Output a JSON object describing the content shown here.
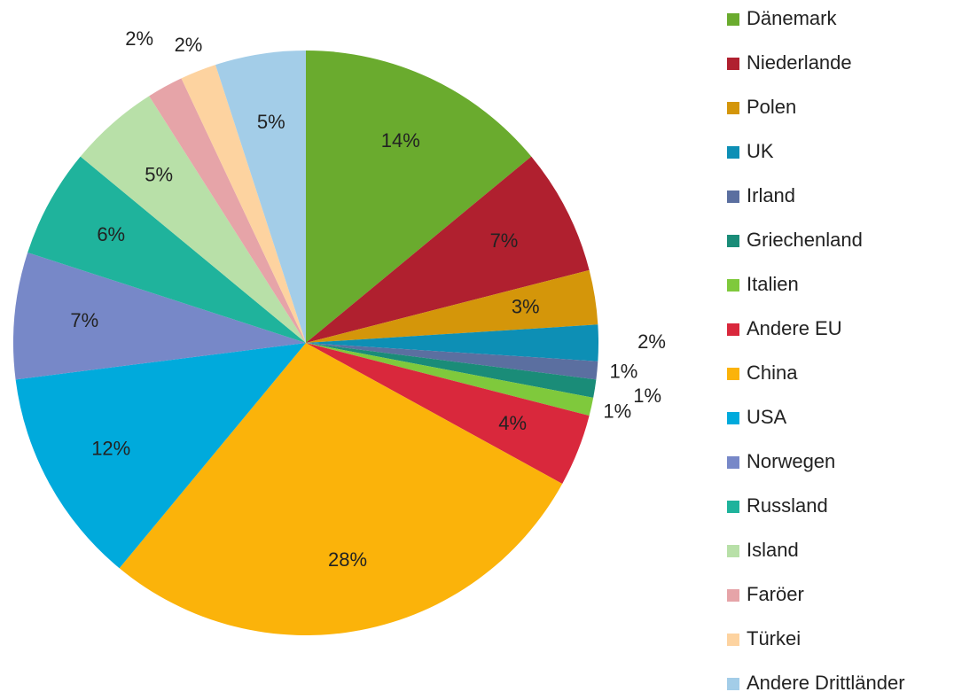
{
  "chart_data": {
    "type": "pie",
    "categories": [
      "Dänemark",
      "Niederlande",
      "Polen",
      "UK",
      "Irland",
      "Griechenland",
      "Italien",
      "Andere EU",
      "China",
      "USA",
      "Norwegen",
      "Russland",
      "Island",
      "Faröer",
      "Türkei",
      "Andere Drittländer"
    ],
    "values": [
      14,
      7,
      3,
      2,
      1,
      1,
      1,
      4,
      28,
      12,
      7,
      6,
      5,
      2,
      2,
      5
    ],
    "value_labels": [
      "14%",
      "7%",
      "3%",
      "2%",
      "1%",
      "1%",
      "1%",
      "4%",
      "28%",
      "12%",
      "7%",
      "6%",
      "5%",
      "2%",
      "2%",
      "5%"
    ],
    "colors": [
      "#6aab2e",
      "#b0202f",
      "#d4960a",
      "#0d8fb5",
      "#5b6fa0",
      "#1a8c78",
      "#7fc93c",
      "#d9283c",
      "#fbb30a",
      "#00aadc",
      "#7788c8",
      "#1fb39c",
      "#b8e0a8",
      "#e6a4a8",
      "#fdd3a0",
      "#a3cde8"
    ],
    "legend": "right"
  }
}
